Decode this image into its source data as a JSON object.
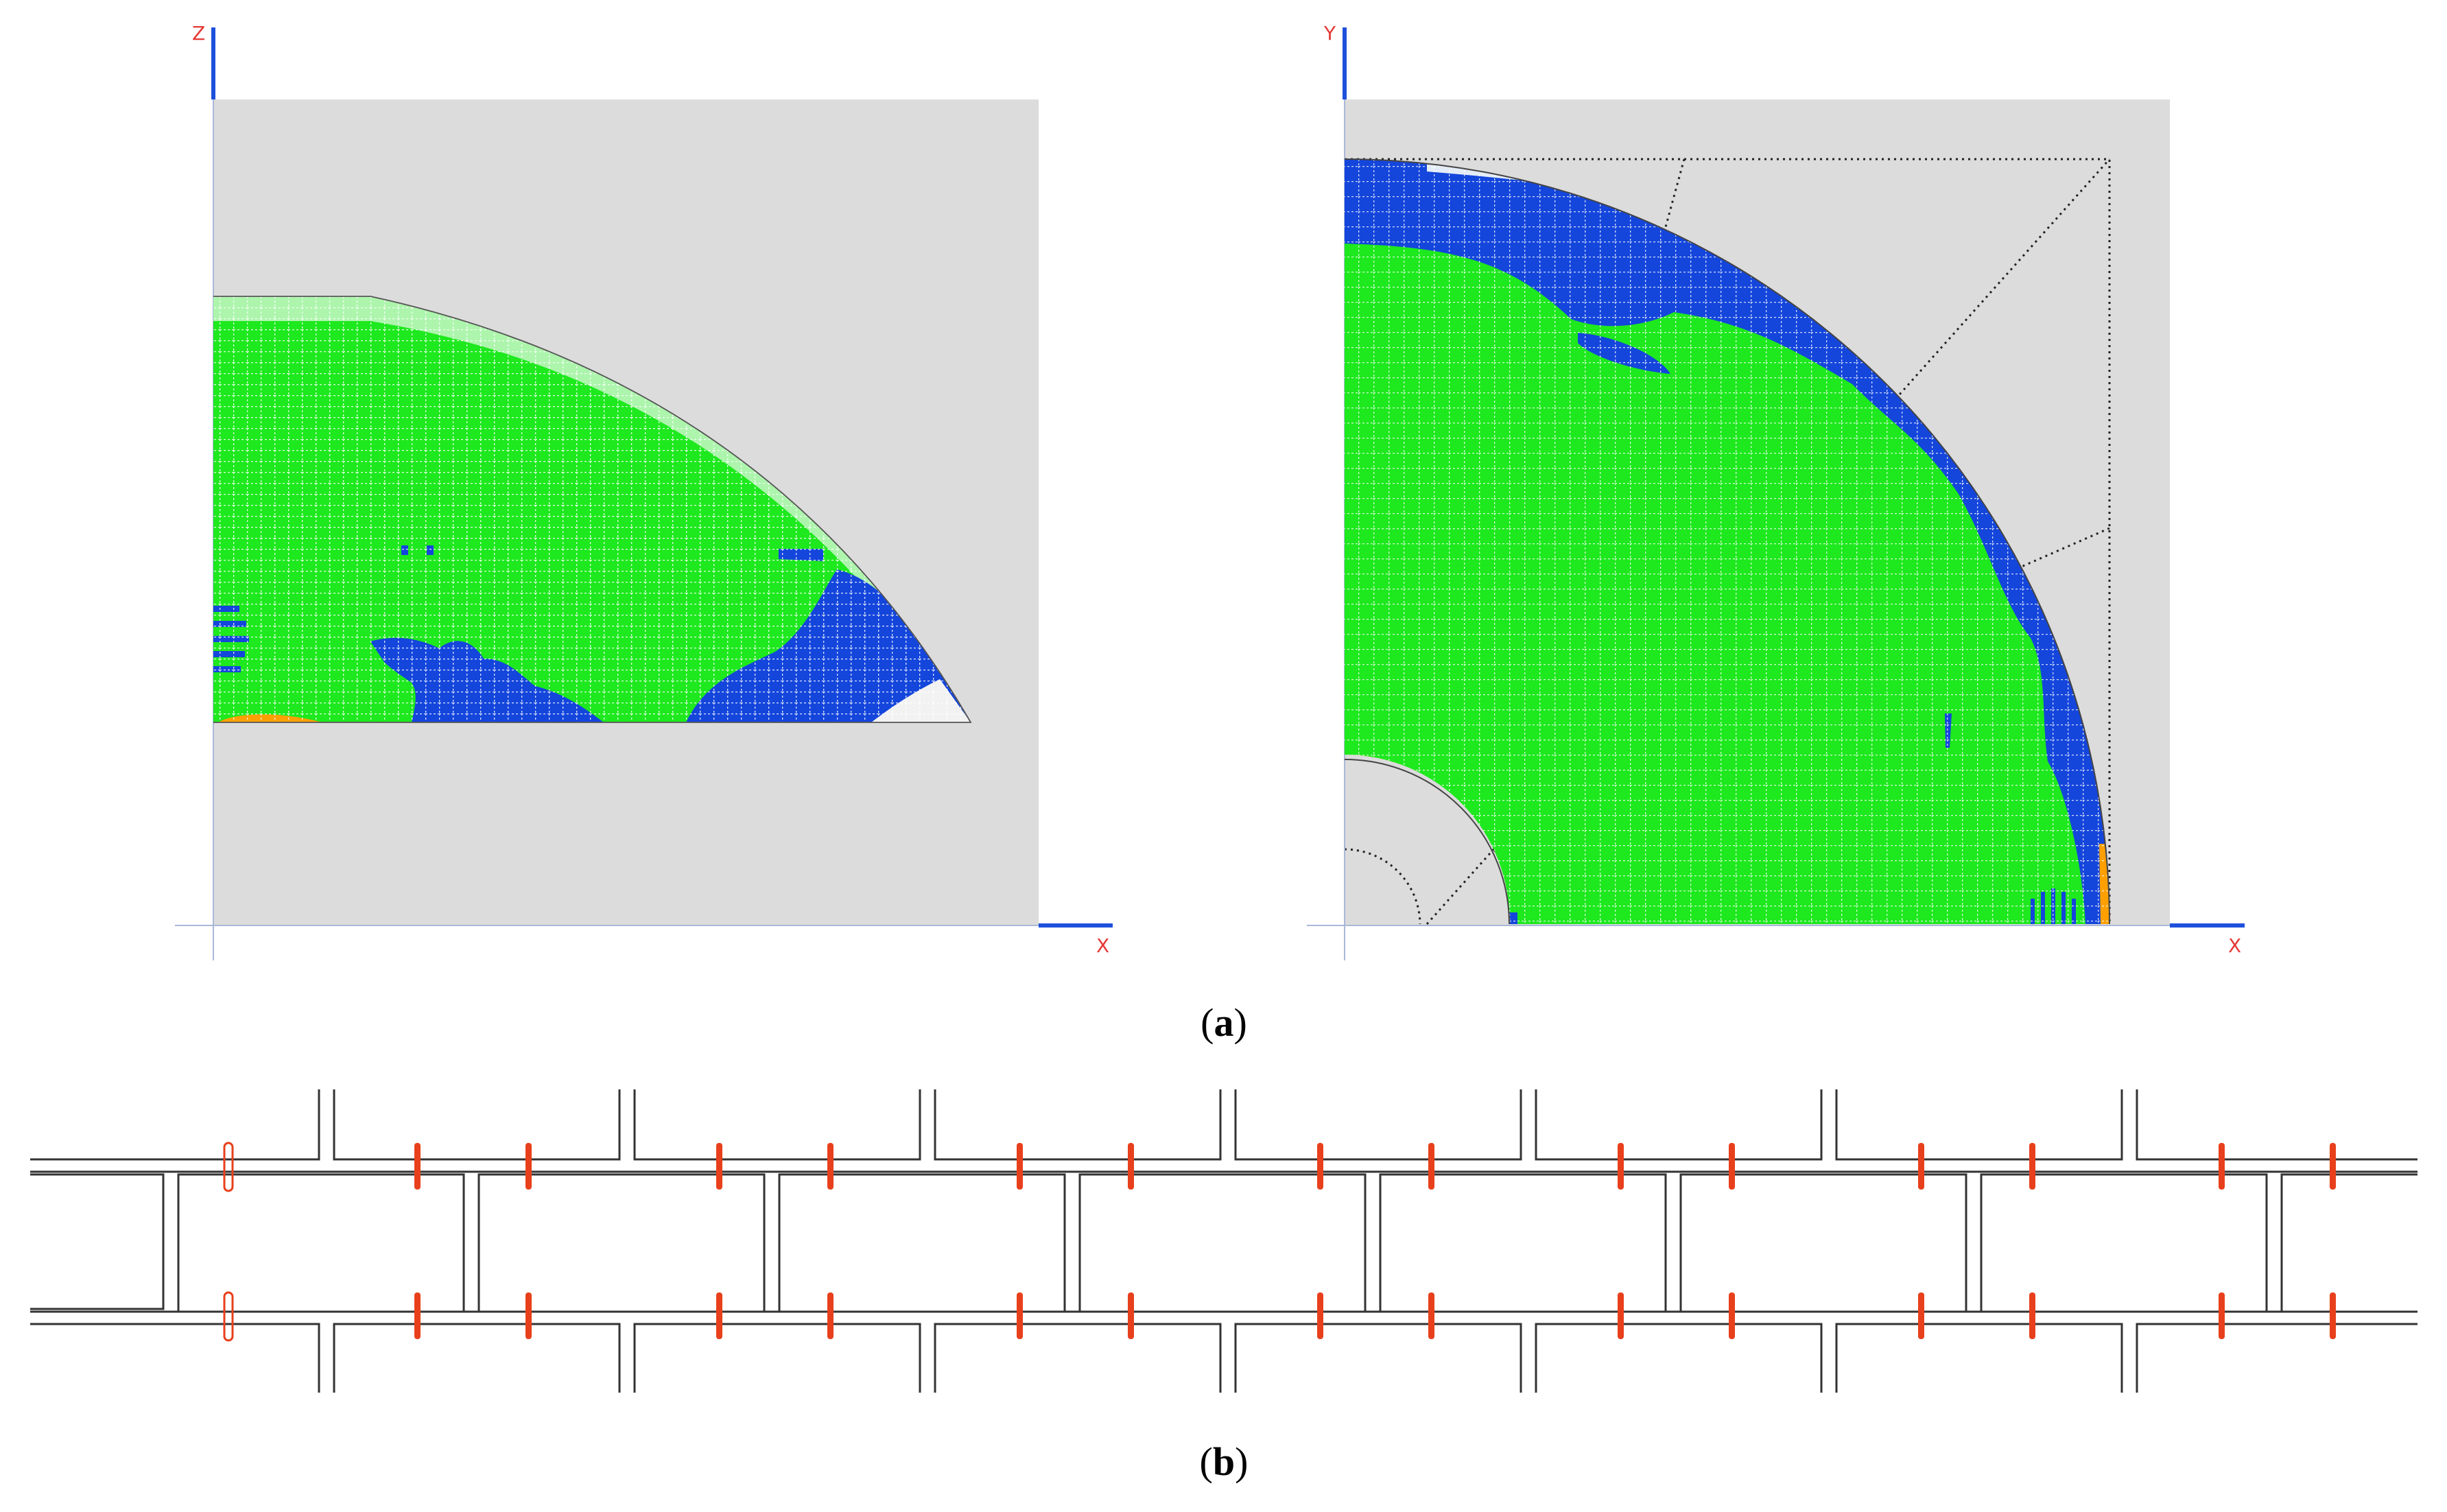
{
  "panel_a": {
    "caption": {
      "open": "(",
      "letter": "a",
      "close": ")"
    },
    "left_view": {
      "vertical_axis_label": "Z",
      "horizontal_axis_label": "X"
    },
    "right_view": {
      "vertical_axis_label": "Y",
      "horizontal_axis_label": "X"
    }
  },
  "panel_b": {
    "caption": {
      "open": "(",
      "letter": "b",
      "close": ")"
    }
  },
  "colors": {
    "background": "#dcdcdc",
    "mesh_green": "#1ee81e",
    "mesh_blue": "#1446dc",
    "mesh_orange": "#ffa000",
    "axis_blue": "#1e50dc",
    "axis_label_red": "#e53935",
    "marker_red": "#e8401c",
    "outline": "#333333"
  }
}
